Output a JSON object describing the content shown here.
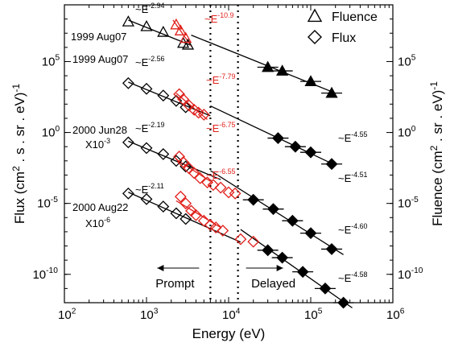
{
  "chart_data": {
    "type": "scatter",
    "title": "",
    "xlabel": "Energy (eV)",
    "ylabel_left": "Flux (cm2 . s . sr . eV)-1",
    "ylabel_right": "Fluence (cm2 . sr . eV)-1",
    "xscale": "log",
    "yscale": "log",
    "xlim": [
      100,
      1000000
    ],
    "ylim": [
      1e-12,
      1000000000.0
    ],
    "x_tick_labels": [
      "10^2",
      "10^3",
      "10^4",
      "10^5",
      "10^6"
    ],
    "y_tick_labels": [
      "10^-10",
      "10^-5",
      "10^0",
      "10^5"
    ],
    "legend": {
      "position": "top-right",
      "entries": [
        {
          "marker": "triangle",
          "label": "Fluence"
        },
        {
          "marker": "diamond",
          "label": "Flux"
        }
      ]
    },
    "vertical_dotted_lines": [
      6000,
      13000
    ],
    "region_labels": [
      {
        "text": "Prompt",
        "arrow": "left"
      },
      {
        "text": "Delayed",
        "arrow": "right"
      }
    ],
    "series": [
      {
        "name": "1999 Aug07",
        "marker": "triangle",
        "open_points": [
          [
            600,
            65000000.0
          ],
          [
            1000,
            30000000.0
          ],
          [
            1600,
            12000000.0
          ],
          [
            2800,
            2000000.0
          ],
          [
            3200,
            1500000.0
          ]
        ],
        "red_points": [
          [
            2300,
            40000000.0
          ],
          [
            2600,
            15000000.0
          ],
          [
            3000,
            4500000.0
          ]
        ],
        "filled_points": [
          [
            30000,
            40000.0
          ],
          [
            45000,
            22000.0
          ],
          [
            100000,
            4000.0
          ],
          [
            180000,
            600.0
          ]
        ],
        "fits": [
          {
            "label": "~E-2.94",
            "color": "black",
            "x": [
              600,
              3400
            ]
          },
          {
            "label": "~E-10.9",
            "color": "red",
            "x": [
              2100,
              3600
            ]
          },
          {
            "label": "~E-4.55",
            "color": "black",
            "x": [
              3500,
              190000
            ]
          }
        ]
      },
      {
        "name": "1999 Aug07",
        "marker": "diamond",
        "open_points": [
          [
            600,
            3000.0
          ],
          [
            1000,
            1200.0
          ],
          [
            1600,
            400.0
          ],
          [
            2300,
            170.0
          ],
          [
            3000,
            60.0
          ]
        ],
        "red_points": [
          [
            2500,
            500.0
          ],
          [
            2800,
            220.0
          ],
          [
            3300,
            80.0
          ],
          [
            3800,
            40.0
          ],
          [
            4300,
            25.0
          ],
          [
            5000,
            18.0
          ]
        ],
        "filled_points": [
          [
            40000,
            0.4
          ],
          [
            65000,
            0.1
          ],
          [
            100000,
            0.04
          ],
          [
            180000,
            0.006
          ]
        ],
        "fits": [
          {
            "label": "~E-2.56",
            "color": "black",
            "x": [
              600,
              6000
            ]
          },
          {
            "label": "~E-7.79",
            "color": "red",
            "x": [
              2300,
              5500
            ]
          },
          {
            "label": "~E-4.51",
            "color": "black",
            "x": [
              6000,
              190000
            ]
          }
        ]
      },
      {
        "name": "2000 Jun28",
        "scale_note": "X10-3",
        "marker": "diamond",
        "open_points": [
          [
            600,
            0.2
          ],
          [
            1000,
            0.08
          ],
          [
            1600,
            0.03
          ],
          [
            2300,
            0.01
          ],
          [
            3000,
            0.004
          ]
        ],
        "red_points": [
          [
            2500,
            0.02
          ],
          [
            2800,
            0.008
          ],
          [
            3300,
            0.003
          ],
          [
            3800,
            0.0014
          ],
          [
            4500,
            0.0006
          ],
          [
            5500,
            0.0003
          ],
          [
            6500,
            0.0002
          ],
          [
            8000,
            0.00013
          ],
          [
            10000,
            6e-05
          ],
          [
            12000,
            5e-05
          ]
        ],
        "filled_points": [
          [
            20000,
            1.8e-05
          ],
          [
            35000,
            4e-06
          ],
          [
            60000,
            6e-07
          ],
          [
            100000,
            8e-08
          ],
          [
            180000,
            6e-09
          ]
        ],
        "fits": [
          {
            "label": "~E-2.19",
            "color": "black",
            "x": [
              600,
              8000
            ]
          },
          {
            "label": "~E-6.75",
            "color": "red",
            "x": [
              2300,
              6000
            ]
          },
          {
            "label": "~E-4.60",
            "color": "black",
            "x": [
              6000,
              250000
            ]
          }
        ]
      },
      {
        "name": "2000 Aug22",
        "scale_note": "X10-6",
        "marker": "diamond",
        "open_points": [
          [
            600,
            5e-05
          ],
          [
            1000,
            2e-05
          ],
          [
            1600,
            6e-06
          ],
          [
            2300,
            2e-06
          ],
          [
            3000,
            8e-07
          ]
        ],
        "red_points": [
          [
            2600,
            3e-05
          ],
          [
            3000,
            1e-05
          ],
          [
            3500,
            3e-06
          ],
          [
            4000,
            1.5e-06
          ],
          [
            5000,
            6e-07
          ],
          [
            6000,
            3e-07
          ],
          [
            7000,
            2e-07
          ],
          [
            8500,
            1.2e-07
          ],
          [
            14000,
            3e-08
          ],
          [
            20000,
            2e-08
          ]
        ],
        "filled_points": [
          [
            30000,
            5e-09
          ],
          [
            45000,
            1.5e-09
          ],
          [
            80000,
            1.5e-10
          ],
          [
            150000,
            1e-11
          ],
          [
            250000,
            1e-12
          ]
        ],
        "fits": [
          {
            "label": "~E-2.11",
            "color": "black",
            "x": [
              600,
              14000
            ]
          },
          {
            "label": "~E-6.55",
            "color": "red",
            "x": [
              2300,
              8000
            ]
          },
          {
            "label": "~E-4.58",
            "color": "black",
            "x": [
              14000,
              320000
            ]
          }
        ]
      }
    ]
  }
}
